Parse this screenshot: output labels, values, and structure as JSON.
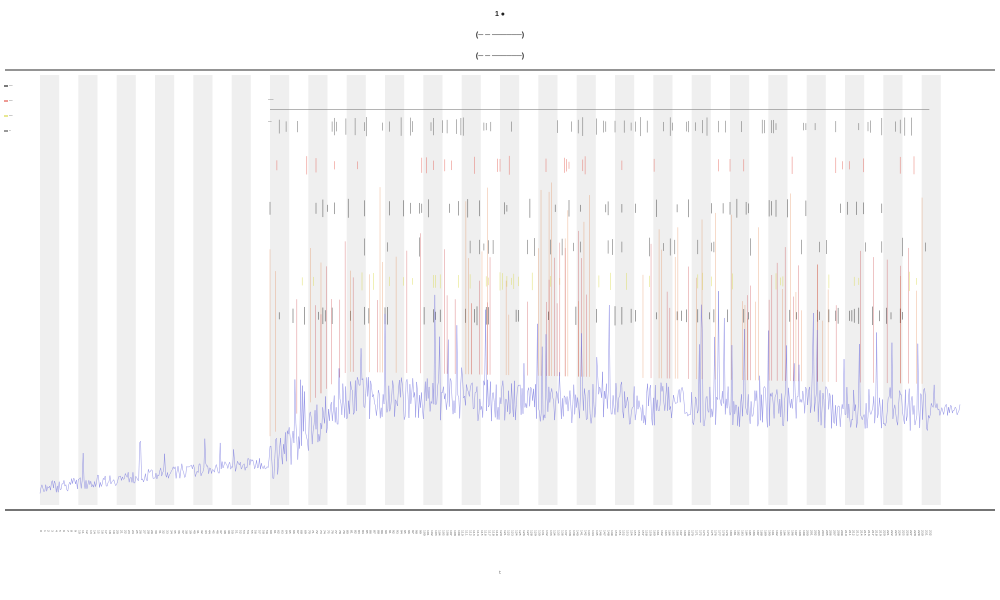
{
  "chart_data": {
    "type": "line",
    "title_lines": [
      "1 ●",
      "(─ ─ ──────)",
      "(─ ─ ──────)"
    ],
    "xlabel": "t",
    "ylabel": "",
    "grid": false,
    "legend_position": "top-left",
    "legend": [
      {
        "name": "──",
        "color": "#222222"
      },
      {
        "name": "──",
        "color": "#e2574c"
      },
      {
        "name": "──",
        "color": "#d8d84a"
      },
      {
        "name": "─",
        "color": "#555555"
      }
    ],
    "bands": {
      "start": 0,
      "end": 240,
      "width": 5,
      "period": 10,
      "color": "#efefef"
    },
    "series": [
      {
        "color": "#6b6bdc",
        "kind": "signal",
        "n": 240,
        "baseline": [
          [
            0,
            4
          ],
          [
            60,
            10
          ],
          [
            80,
            25
          ],
          [
            240,
            22
          ]
        ],
        "active_from": 60
      },
      {
        "color": "#e07a3a",
        "kind": "spikes",
        "range": [
          60,
          232
        ],
        "height": [
          20,
          52
        ]
      },
      {
        "color": "#c2262c",
        "kind": "spikes",
        "range": [
          60,
          232
        ],
        "height": [
          22,
          40
        ]
      }
    ],
    "event_rows": [
      {
        "color": "#444444",
        "y": 88,
        "density": 0.55
      },
      {
        "color": "#e2574c",
        "y": 79,
        "density": 0.3
      },
      {
        "color": "#222222",
        "y": 69,
        "density": 0.5
      },
      {
        "color": "#333333",
        "y": 60,
        "density": 0.35
      },
      {
        "color": "#d8d84a",
        "y": 52,
        "density": 0.4
      },
      {
        "color": "#111111",
        "y": 44,
        "density": 0.6
      }
    ],
    "row_labels": [
      "───",
      "──"
    ],
    "xlim": [
      0,
      240
    ],
    "ylim": [
      0,
      100
    ]
  }
}
